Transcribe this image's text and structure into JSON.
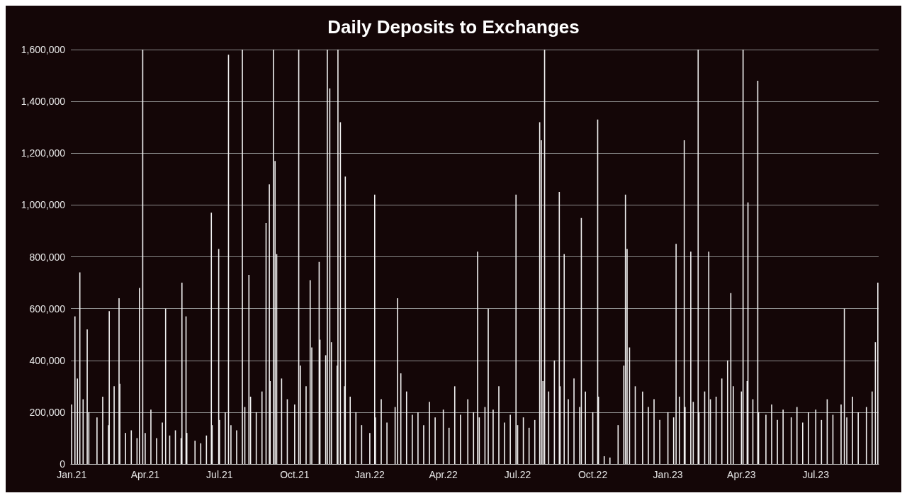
{
  "chart_data": {
    "type": "bar",
    "title": "Daily Deposits to Exchanges",
    "x": [
      "2021-01-01",
      "2021-01-05",
      "2021-01-08",
      "2021-01-11",
      "2021-01-15",
      "2021-01-20",
      "2021-01-22",
      "2021-02-01",
      "2021-02-08",
      "2021-02-15",
      "2021-02-16",
      "2021-02-22",
      "2021-02-28",
      "2021-03-01",
      "2021-03-08",
      "2021-03-15",
      "2021-03-22",
      "2021-03-25",
      "2021-03-29",
      "2021-04-01",
      "2021-04-08",
      "2021-04-15",
      "2021-04-22",
      "2021-04-26",
      "2021-05-01",
      "2021-05-08",
      "2021-05-15",
      "2021-05-16",
      "2021-05-21",
      "2021-05-22",
      "2021-06-01",
      "2021-06-08",
      "2021-06-15",
      "2021-06-21",
      "2021-06-22",
      "2021-06-30",
      "2021-07-01",
      "2021-07-08",
      "2021-07-12",
      "2021-07-15",
      "2021-07-22",
      "2021-07-29",
      "2021-08-01",
      "2021-08-06",
      "2021-08-08",
      "2021-08-15",
      "2021-08-22",
      "2021-08-27",
      "2021-08-31",
      "2021-09-01",
      "2021-09-05",
      "2021-09-07",
      "2021-09-09",
      "2021-09-15",
      "2021-09-22",
      "2021-10-01",
      "2021-10-06",
      "2021-10-08",
      "2021-10-15",
      "2021-10-20",
      "2021-10-22",
      "2021-10-31",
      "2021-11-01",
      "2021-11-08",
      "2021-11-10",
      "2021-11-13",
      "2021-11-15",
      "2021-11-22",
      "2021-11-23",
      "2021-11-26",
      "2021-12-01",
      "2021-12-02",
      "2021-12-08",
      "2021-12-15",
      "2021-12-22",
      "2022-01-01",
      "2022-01-07",
      "2022-01-08",
      "2022-01-15",
      "2022-01-22",
      "2022-02-01",
      "2022-02-04",
      "2022-02-08",
      "2022-02-15",
      "2022-02-22",
      "2022-03-01",
      "2022-03-08",
      "2022-03-15",
      "2022-03-22",
      "2022-04-01",
      "2022-04-08",
      "2022-04-15",
      "2022-04-22",
      "2022-05-01",
      "2022-05-08",
      "2022-05-13",
      "2022-05-15",
      "2022-05-22",
      "2022-05-26",
      "2022-06-01",
      "2022-06-08",
      "2022-06-15",
      "2022-06-22",
      "2022-06-29",
      "2022-07-01",
      "2022-07-08",
      "2022-07-15",
      "2022-07-22",
      "2022-07-28",
      "2022-07-30",
      "2022-08-01",
      "2022-08-03",
      "2022-08-08",
      "2022-08-15",
      "2022-08-21",
      "2022-08-22",
      "2022-08-27",
      "2022-09-01",
      "2022-09-08",
      "2022-09-15",
      "2022-09-17",
      "2022-09-22",
      "2022-10-01",
      "2022-10-07",
      "2022-10-08",
      "2022-10-15",
      "2022-10-22",
      "2022-11-01",
      "2022-11-08",
      "2022-11-10",
      "2022-11-12",
      "2022-11-15",
      "2022-11-22",
      "2022-12-01",
      "2022-12-08",
      "2022-12-15",
      "2022-12-22",
      "2023-01-01",
      "2023-01-08",
      "2023-01-11",
      "2023-01-15",
      "2023-01-21",
      "2023-01-22",
      "2023-01-29",
      "2023-02-01",
      "2023-02-07",
      "2023-02-08",
      "2023-02-15",
      "2023-02-20",
      "2023-02-22",
      "2023-03-01",
      "2023-03-08",
      "2023-03-15",
      "2023-03-19",
      "2023-03-22",
      "2023-04-01",
      "2023-04-03",
      "2023-04-08",
      "2023-04-09",
      "2023-04-15",
      "2023-04-21",
      "2023-04-22",
      "2023-05-01",
      "2023-05-08",
      "2023-05-15",
      "2023-05-22",
      "2023-06-01",
      "2023-06-08",
      "2023-06-15",
      "2023-06-22",
      "2023-07-01",
      "2023-07-08",
      "2023-07-15",
      "2023-07-22",
      "2023-08-01",
      "2023-08-05",
      "2023-08-08",
      "2023-08-15",
      "2023-08-22",
      "2023-09-01",
      "2023-09-08",
      "2023-09-12",
      "2023-09-15"
    ],
    "values": [
      230000,
      570000,
      330000,
      740000,
      250000,
      520000,
      200000,
      180000,
      260000,
      150000,
      590000,
      300000,
      640000,
      310000,
      120000,
      130000,
      100000,
      680000,
      1600000,
      120000,
      210000,
      100000,
      160000,
      600000,
      110000,
      130000,
      100000,
      700000,
      570000,
      120000,
      90000,
      80000,
      110000,
      970000,
      150000,
      830000,
      170000,
      200000,
      1580000,
      150000,
      130000,
      1600000,
      220000,
      730000,
      260000,
      200000,
      280000,
      930000,
      1080000,
      320000,
      1600000,
      1170000,
      810000,
      330000,
      250000,
      230000,
      1600000,
      380000,
      300000,
      710000,
      450000,
      780000,
      480000,
      420000,
      1600000,
      1450000,
      470000,
      380000,
      1600000,
      1320000,
      300000,
      1110000,
      260000,
      200000,
      150000,
      120000,
      1040000,
      180000,
      250000,
      160000,
      220000,
      640000,
      350000,
      280000,
      190000,
      200000,
      150000,
      240000,
      180000,
      210000,
      140000,
      300000,
      190000,
      250000,
      200000,
      820000,
      180000,
      220000,
      600000,
      210000,
      300000,
      160000,
      190000,
      1040000,
      150000,
      180000,
      140000,
      170000,
      1320000,
      1250000,
      320000,
      1600000,
      280000,
      400000,
      1050000,
      300000,
      810000,
      250000,
      330000,
      220000,
      950000,
      280000,
      200000,
      1330000,
      260000,
      30000,
      25000,
      150000,
      380000,
      1040000,
      830000,
      450000,
      300000,
      280000,
      220000,
      250000,
      170000,
      200000,
      180000,
      850000,
      260000,
      1250000,
      220000,
      820000,
      240000,
      1600000,
      200000,
      280000,
      820000,
      250000,
      260000,
      330000,
      400000,
      660000,
      300000,
      280000,
      1600000,
      320000,
      1010000,
      250000,
      1480000,
      200000,
      190000,
      230000,
      170000,
      210000,
      180000,
      220000,
      160000,
      200000,
      210000,
      170000,
      250000,
      190000,
      230000,
      600000,
      180000,
      260000,
      200000,
      220000,
      280000,
      470000,
      700000
    ],
    "color": "#f2f2f2",
    "xlim": [
      "2020-12-31",
      "2023-09-16"
    ],
    "xticks": [
      {
        "value": "2021-01-01",
        "label": "Jan.21"
      },
      {
        "value": "2021-04-01",
        "label": "Apr.21"
      },
      {
        "value": "2021-07-01",
        "label": "Jul.21"
      },
      {
        "value": "2021-10-01",
        "label": "Oct.21"
      },
      {
        "value": "2022-01-01",
        "label": "Jan.22"
      },
      {
        "value": "2022-04-01",
        "label": "Apr.22"
      },
      {
        "value": "2022-07-01",
        "label": "Jul.22"
      },
      {
        "value": "2022-10-01",
        "label": "Oct.22"
      },
      {
        "value": "2023-01-01",
        "label": "Jan.23"
      },
      {
        "value": "2023-04-01",
        "label": "Apr.23"
      },
      {
        "value": "2023-07-01",
        "label": "Jul.23"
      }
    ],
    "ylim": [
      0,
      1600000
    ],
    "yticks": [
      0,
      {
        "value": 200000,
        "label": "200,000"
      },
      {
        "value": 400000,
        "label": "400,000"
      },
      {
        "value": 600000,
        "label": "600,000"
      },
      {
        "value": 800000,
        "label": "800,000"
      },
      {
        "value": 1000000,
        "label": "1,000,000"
      },
      {
        "value": 1200000,
        "label": "1,200,000"
      },
      {
        "value": 1400000,
        "label": "1,400,000"
      },
      {
        "value": 1600000,
        "label": "1,600,000"
      }
    ],
    "grid": "y"
  }
}
